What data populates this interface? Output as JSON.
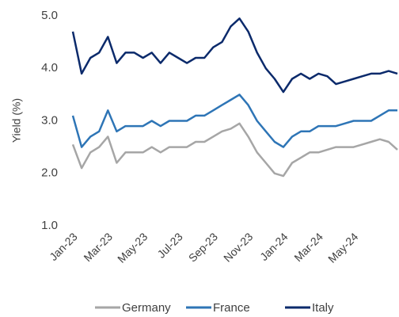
{
  "chart_data": {
    "type": "line",
    "y_label": "Yield (%)",
    "categories": [
      "Jan-23",
      null,
      null,
      null,
      "Mar-23",
      null,
      null,
      null,
      "May-23",
      null,
      null,
      null,
      "Jul-23",
      null,
      null,
      null,
      "Sep-23",
      null,
      null,
      null,
      "Nov-23",
      null,
      null,
      null,
      "Jan-24",
      null,
      null,
      null,
      "Mar-24",
      null,
      null,
      null,
      "May-24",
      null,
      null,
      null,
      null,
      null
    ],
    "series": [
      {
        "name": "Germany",
        "color": "#a6a6a6",
        "values": [
          2.55,
          2.1,
          2.4,
          2.5,
          2.7,
          2.2,
          2.4,
          2.4,
          2.4,
          2.5,
          2.4,
          2.5,
          2.5,
          2.5,
          2.6,
          2.6,
          2.7,
          2.8,
          2.85,
          2.95,
          2.7,
          2.4,
          2.2,
          2.0,
          1.95,
          2.2,
          2.3,
          2.4,
          2.4,
          2.45,
          2.5,
          2.5,
          2.5,
          2.55,
          2.6,
          2.65,
          2.6,
          2.45
        ]
      },
      {
        "name": "France",
        "color": "#2e75b6",
        "values": [
          3.1,
          2.5,
          2.7,
          2.8,
          3.2,
          2.8,
          2.9,
          2.9,
          2.9,
          3.0,
          2.9,
          3.0,
          3.0,
          3.0,
          3.1,
          3.1,
          3.2,
          3.3,
          3.4,
          3.5,
          3.3,
          3.0,
          2.8,
          2.6,
          2.5,
          2.7,
          2.8,
          2.8,
          2.9,
          2.9,
          2.9,
          2.95,
          3.0,
          3.0,
          3.0,
          3.1,
          3.2,
          3.2
        ]
      },
      {
        "name": "Italy",
        "color": "#0b2a6b",
        "values": [
          4.7,
          3.9,
          4.2,
          4.3,
          4.6,
          4.1,
          4.3,
          4.3,
          4.2,
          4.3,
          4.1,
          4.3,
          4.2,
          4.1,
          4.2,
          4.2,
          4.4,
          4.5,
          4.8,
          4.95,
          4.7,
          4.3,
          4.0,
          3.8,
          3.55,
          3.8,
          3.9,
          3.8,
          3.9,
          3.85,
          3.7,
          3.75,
          3.8,
          3.85,
          3.9,
          3.9,
          3.95,
          3.9
        ]
      }
    ],
    "ylim": [
      1,
      5
    ],
    "yticks": [
      {
        "value": 1,
        "label": "1.0"
      },
      {
        "value": 2,
        "label": "2.0"
      },
      {
        "value": 3,
        "label": "3.0"
      },
      {
        "value": 4,
        "label": "4.0"
      },
      {
        "value": 5,
        "label": "5.0"
      }
    ],
    "grid": false,
    "legend": "bottom"
  }
}
